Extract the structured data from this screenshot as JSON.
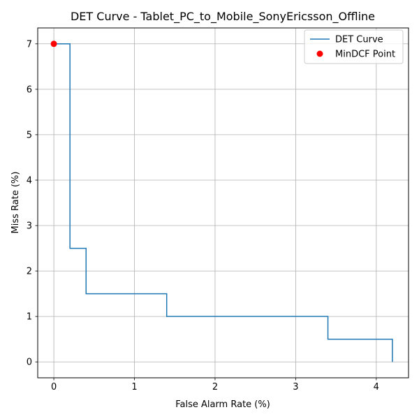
{
  "chart_data": {
    "type": "line",
    "title": "DET Curve - Tablet_PC_to_Mobile_SonyEricsson_Offline",
    "xlabel": "False Alarm Rate (%)",
    "ylabel": "Miss Rate (%)",
    "xlim": [
      -0.2,
      4.4
    ],
    "ylim": [
      -0.35,
      7.35
    ],
    "xticks": [
      0,
      1,
      2,
      3,
      4
    ],
    "yticks": [
      0,
      1,
      2,
      3,
      4,
      5,
      6,
      7
    ],
    "grid": true,
    "legend_position": "top-right",
    "series": [
      {
        "name": "DET Curve",
        "style": "step-line",
        "color": "#1f77b4",
        "x": [
          0,
          0.2,
          0.2,
          0.4,
          0.4,
          1.4,
          1.4,
          3.4,
          3.4,
          4.2,
          4.2
        ],
        "y": [
          7,
          7,
          2.5,
          2.5,
          1.5,
          1.5,
          1.0,
          1.0,
          0.5,
          0.5,
          0
        ]
      },
      {
        "name": "MinDCF Point",
        "style": "scatter",
        "color": "#ff0000",
        "x": [
          0
        ],
        "y": [
          7
        ]
      }
    ]
  }
}
